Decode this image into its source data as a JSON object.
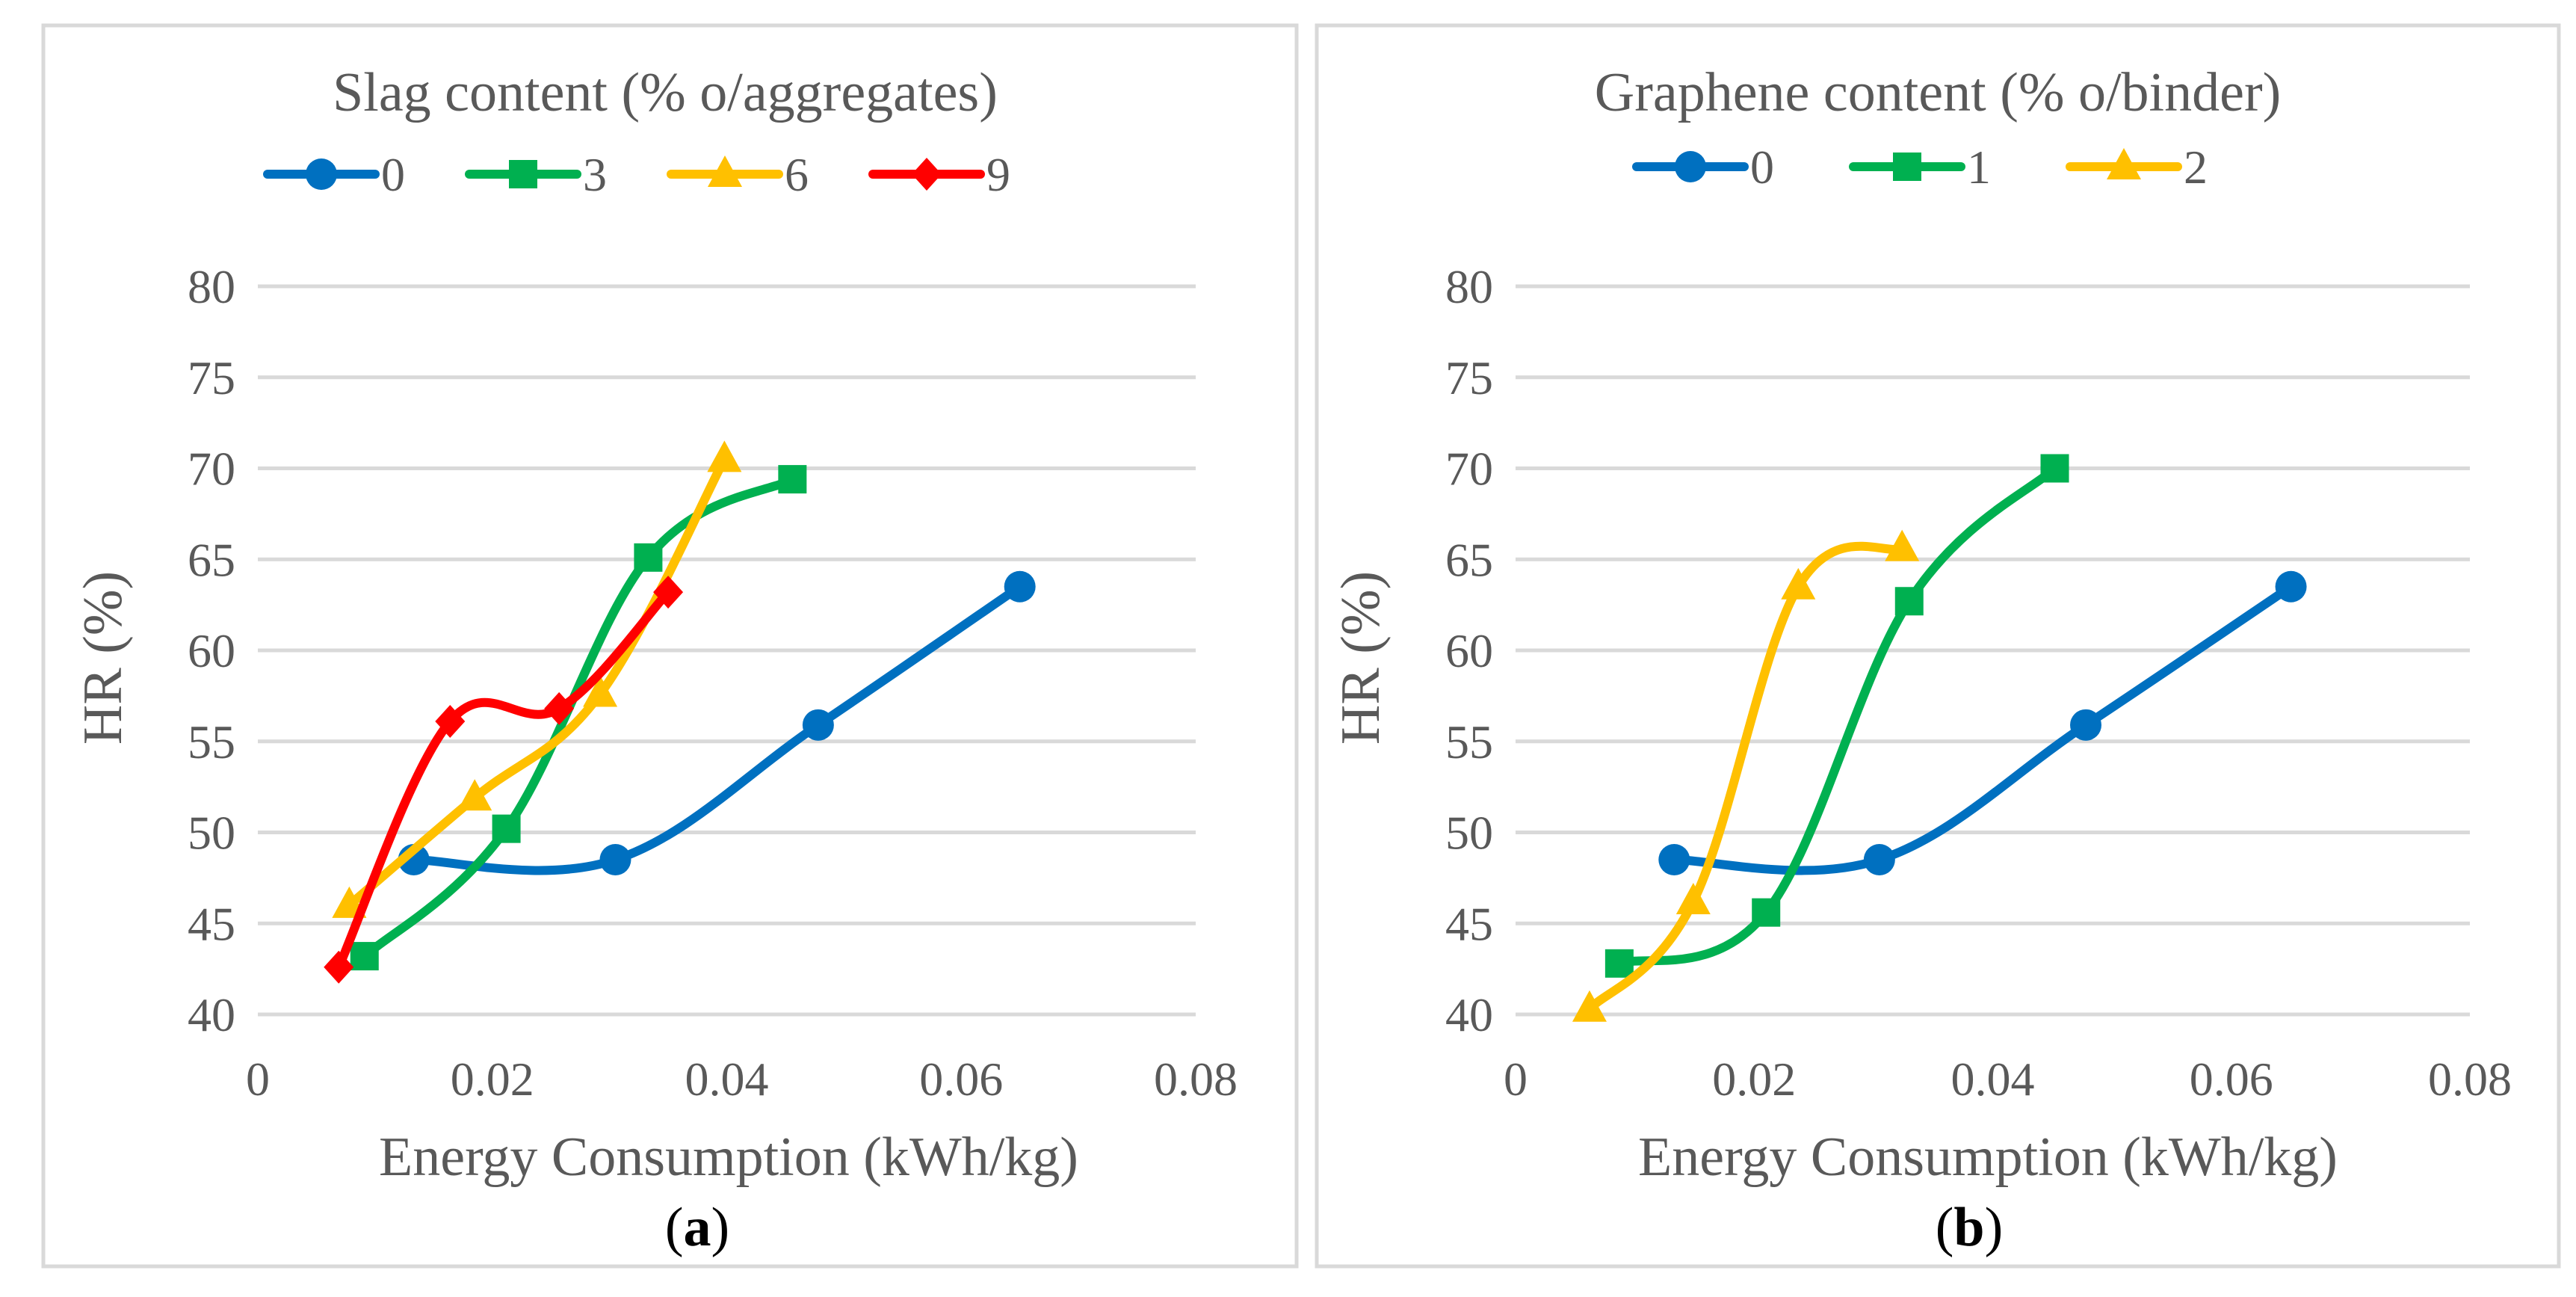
{
  "colors": {
    "blue": "#0070c0",
    "green": "#00b050",
    "yellow": "#ffc000",
    "red": "#ff0000",
    "text": "#595959",
    "grid": "#d9d9d9"
  },
  "chart_data": [
    {
      "type": "line",
      "panel_label": "a",
      "title": "Slag content (% o/aggregates)",
      "xlabel": "Energy Consumption (kWh/kg)",
      "ylabel": "HR (%)",
      "xlim": [
        0,
        0.08
      ],
      "ylim": [
        40,
        80
      ],
      "x_ticks": [
        0,
        0.02,
        0.04,
        0.06,
        0.08
      ],
      "x_tick_labels": [
        "0",
        "0.02",
        "0.04",
        "0.06",
        "0.08"
      ],
      "y_ticks": [
        40,
        45,
        50,
        55,
        60,
        65,
        70,
        75,
        80
      ],
      "y_tick_labels": [
        "40",
        "45",
        "50",
        "55",
        "60",
        "65",
        "70",
        "75",
        "80"
      ],
      "grid": true,
      "legend_position": "top",
      "series": [
        {
          "name": "0",
          "color": "#0070c0",
          "marker": "circle",
          "x": [
            0.0133,
            0.0305,
            0.0478,
            0.065
          ],
          "y": [
            48.5,
            48.5,
            55.9,
            63.5
          ]
        },
        {
          "name": "3",
          "color": "#00b050",
          "marker": "square",
          "x": [
            0.0091,
            0.0212,
            0.0333,
            0.0456
          ],
          "y": [
            43.2,
            50.2,
            65.1,
            69.4
          ]
        },
        {
          "name": "6",
          "color": "#ffc000",
          "marker": "triangle",
          "x": [
            0.0078,
            0.0185,
            0.0292,
            0.0398
          ],
          "y": [
            46.0,
            51.9,
            57.6,
            70.5
          ]
        },
        {
          "name": "9",
          "color": "#ff0000",
          "marker": "diamond",
          "x": [
            0.0069,
            0.0164,
            0.0257,
            0.035
          ],
          "y": [
            42.6,
            56.1,
            56.8,
            63.2
          ]
        }
      ]
    },
    {
      "type": "line",
      "panel_label": "b",
      "title": "Graphene content (% o/binder)",
      "xlabel": "Energy Consumption (kWh/kg)",
      "ylabel": "HR (%)",
      "xlim": [
        0,
        0.08
      ],
      "ylim": [
        40,
        80
      ],
      "x_ticks": [
        0,
        0.02,
        0.04,
        0.06,
        0.08
      ],
      "x_tick_labels": [
        "0",
        "0.02",
        "0.04",
        "0.06",
        "0.08"
      ],
      "y_ticks": [
        40,
        45,
        50,
        55,
        60,
        65,
        70,
        75,
        80
      ],
      "y_tick_labels": [
        "40",
        "45",
        "50",
        "55",
        "60",
        "65",
        "70",
        "75",
        "80"
      ],
      "grid": true,
      "legend_position": "top",
      "series": [
        {
          "name": "0",
          "color": "#0070c0",
          "marker": "circle",
          "x": [
            0.0133,
            0.0305,
            0.0478,
            0.065
          ],
          "y": [
            48.5,
            48.5,
            55.9,
            63.5
          ]
        },
        {
          "name": "1",
          "color": "#00b050",
          "marker": "square",
          "x": [
            0.0087,
            0.021,
            0.033,
            0.0452
          ],
          "y": [
            42.8,
            45.6,
            62.7,
            70.0
          ]
        },
        {
          "name": "2",
          "color": "#ffc000",
          "marker": "triangle",
          "x": [
            0.0062,
            0.0149,
            0.0237,
            0.0324
          ],
          "y": [
            40.3,
            46.2,
            63.5,
            65.6
          ]
        }
      ]
    }
  ]
}
